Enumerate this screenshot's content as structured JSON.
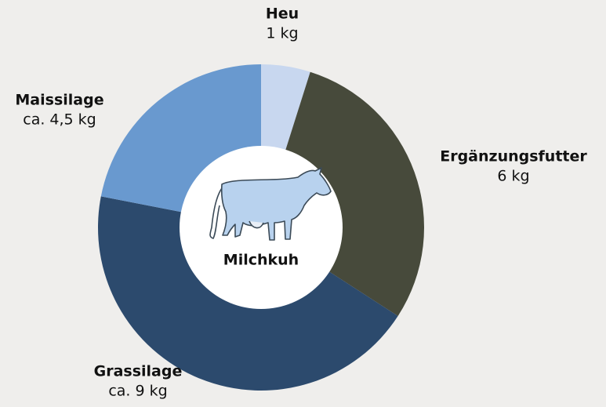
{
  "chart_data": {
    "type": "donut",
    "center_label": "Milchkuh",
    "categories": [
      "Heu",
      "Ergänzungsfutter",
      "Grassilage",
      "Maissilage"
    ],
    "values": [
      1,
      6,
      9,
      4.5
    ],
    "value_labels": [
      "1 kg",
      "6 kg",
      "ca. 9 kg",
      "ca. 4,5 kg"
    ],
    "colors": [
      "#c8d7ef",
      "#474a3b",
      "#2c4a6d",
      "#6999cf"
    ]
  }
}
